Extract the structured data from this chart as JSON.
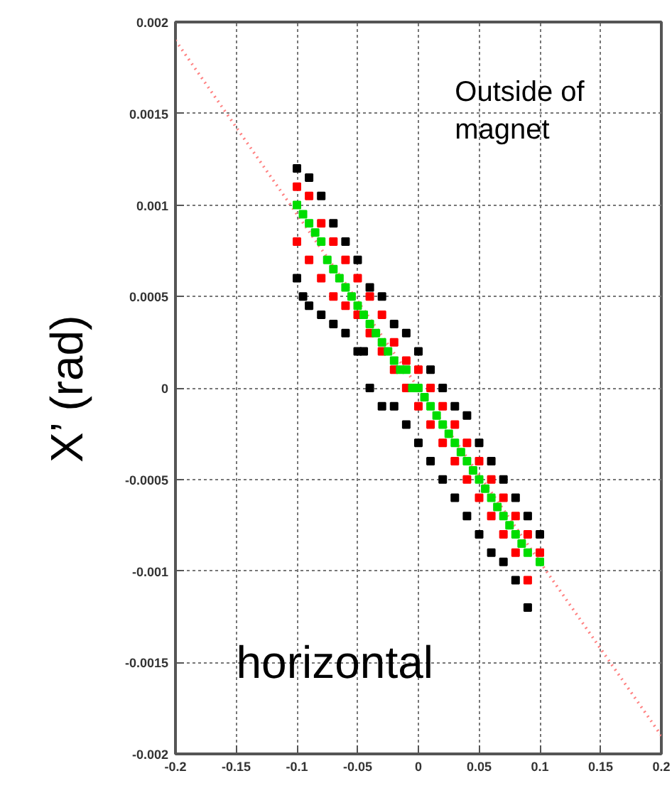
{
  "chart_data": {
    "type": "scatter",
    "ylabel": "X’ (rad)",
    "annotations": [
      "Outside of magnet",
      "horizontal"
    ],
    "xlim": [
      -0.2,
      0.2
    ],
    "ylim": [
      -0.002,
      0.002
    ],
    "xticks": [
      -0.2,
      -0.15,
      -0.1,
      -0.05,
      0,
      0.05,
      0.1,
      0.15,
      0.2
    ],
    "yticks": [
      -0.002,
      -0.0015,
      -0.001,
      -0.0005,
      0,
      0.0005,
      0.001,
      0.0015,
      0.002
    ],
    "grid": true,
    "marker": "square",
    "series": [
      {
        "type": "line",
        "color": "#ff8080",
        "line_style": "dotted",
        "marker": "none",
        "x": [
          -0.2,
          0.2
        ],
        "values": [
          0.0019,
          -0.0019
        ]
      },
      {
        "color": "#000000",
        "x": [
          -0.1,
          -0.09,
          -0.08,
          -0.07,
          -0.06,
          -0.05,
          -0.04,
          -0.03,
          -0.02,
          -0.01,
          0,
          0.01,
          0.02,
          0.03,
          0.04,
          0.05,
          0.06,
          0.07,
          0.08,
          0.09,
          0.1,
          -0.1,
          -0.095,
          -0.09,
          -0.08,
          -0.07,
          -0.06,
          -0.05,
          -0.04,
          -0.03,
          -0.02,
          -0.01,
          0,
          0.01,
          0.02,
          0.03,
          0.04,
          0.05,
          0.06,
          0.07,
          0.08,
          0.09,
          -0.045
        ],
        "values": [
          0.0012,
          0.00115,
          0.00105,
          0.0009,
          0.0008,
          0.0007,
          0.00055,
          0.0005,
          0.00035,
          0.0003,
          0.0002,
          0.0001,
          0.0,
          -0.0001,
          -0.00015,
          -0.0003,
          -0.0004,
          -0.0005,
          -0.0006,
          -0.0007,
          -0.0008,
          0.0006,
          0.0005,
          0.00045,
          0.0004,
          0.00035,
          0.0003,
          0.0002,
          0.0,
          -0.0001,
          -0.0001,
          -0.0002,
          -0.0003,
          -0.0004,
          -0.0005,
          -0.0006,
          -0.0007,
          -0.0008,
          -0.0009,
          -0.00095,
          -0.00105,
          -0.0012,
          0.0002
        ]
      },
      {
        "color": "#ff0000",
        "x": [
          -0.1,
          -0.09,
          -0.08,
          -0.07,
          -0.06,
          -0.05,
          -0.04,
          -0.03,
          -0.02,
          -0.01,
          0,
          0.01,
          0.02,
          0.03,
          0.04,
          0.05,
          0.06,
          0.07,
          0.08,
          0.09,
          0.1,
          -0.1,
          -0.09,
          -0.08,
          -0.07,
          -0.06,
          -0.05,
          -0.04,
          -0.03,
          -0.02,
          -0.01,
          0,
          0.01,
          0.02,
          0.03,
          0.04,
          0.05,
          0.06,
          0.07,
          0.08,
          0.09
        ],
        "values": [
          0.0011,
          0.00105,
          0.0009,
          0.0008,
          0.0007,
          0.0006,
          0.0005,
          0.0004,
          0.00025,
          0.00015,
          0.0001,
          0.0,
          -0.0001,
          -0.0002,
          -0.0003,
          -0.0004,
          -0.0005,
          -0.0006,
          -0.0007,
          -0.0008,
          -0.0009,
          0.0008,
          0.0007,
          0.0006,
          0.0005,
          0.00045,
          0.0004,
          0.0003,
          0.0002,
          0.0001,
          0.0,
          -0.0001,
          -0.0002,
          -0.0003,
          -0.0004,
          -0.0005,
          -0.0006,
          -0.0007,
          -0.0008,
          -0.0009,
          -0.00105
        ]
      },
      {
        "color": "#00dd00",
        "x": [
          -0.1,
          -0.095,
          -0.09,
          -0.085,
          -0.08,
          -0.075,
          -0.07,
          -0.065,
          -0.06,
          -0.055,
          -0.05,
          -0.045,
          -0.04,
          -0.035,
          -0.03,
          -0.025,
          -0.02,
          -0.015,
          -0.01,
          -0.005,
          0,
          0.005,
          0.01,
          0.015,
          0.02,
          0.025,
          0.03,
          0.035,
          0.04,
          0.045,
          0.05,
          0.055,
          0.06,
          0.065,
          0.07,
          0.075,
          0.08,
          0.085,
          0.09,
          0.1
        ],
        "values": [
          0.001,
          0.00095,
          0.0009,
          0.00085,
          0.0008,
          0.0007,
          0.00065,
          0.0006,
          0.00055,
          0.0005,
          0.00045,
          0.0004,
          0.00035,
          0.0003,
          0.00025,
          0.0002,
          0.00015,
          0.0001,
          0.0001,
          0.0,
          0.0,
          -5e-05,
          -0.0001,
          -0.00015,
          -0.0002,
          -0.00025,
          -0.0003,
          -0.00035,
          -0.0004,
          -0.00045,
          -0.0005,
          -0.00055,
          -0.0006,
          -0.00065,
          -0.0007,
          -0.00075,
          -0.0008,
          -0.00085,
          -0.0009,
          -0.00095
        ]
      }
    ]
  }
}
